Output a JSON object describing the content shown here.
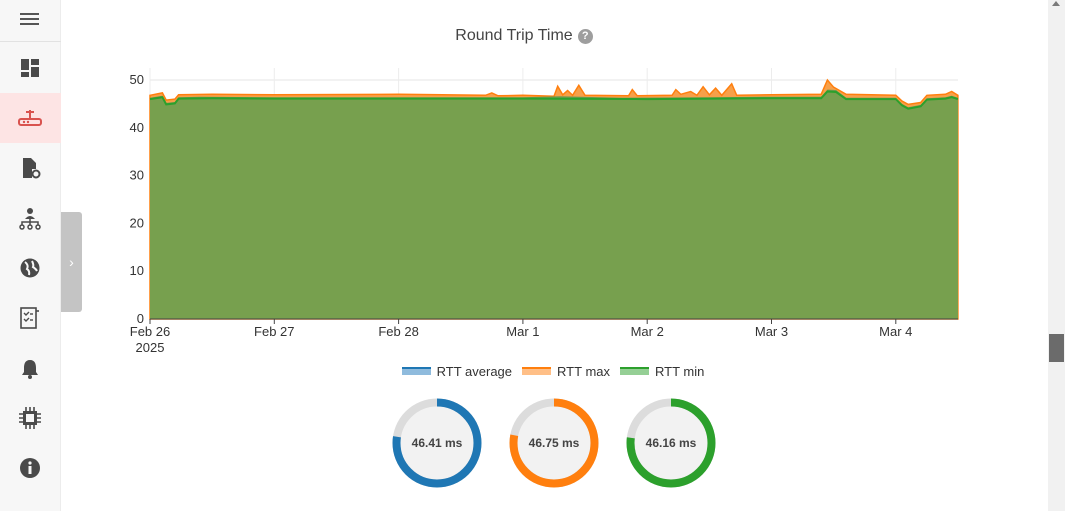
{
  "sidebar": {
    "items": [
      {
        "name": "dashboard",
        "icon": "dashboard-icon"
      },
      {
        "name": "router",
        "icon": "router-icon",
        "active": true
      },
      {
        "name": "file-settings",
        "icon": "file-settings-icon"
      },
      {
        "name": "network",
        "icon": "network-tree-icon"
      },
      {
        "name": "internet",
        "icon": "globe-icon"
      },
      {
        "name": "logs",
        "icon": "checklist-icon"
      },
      {
        "name": "alerts",
        "icon": "bell-icon"
      },
      {
        "name": "system",
        "icon": "chip-icon"
      },
      {
        "name": "info",
        "icon": "info-icon"
      }
    ],
    "active_color": "#d9534f"
  },
  "collapse_tab": {
    "glyph": "›"
  },
  "chart": {
    "title": "Round Trip Time",
    "help_glyph": "?"
  },
  "chart_data": {
    "type": "area",
    "title": "Round Trip Time",
    "xlabel": "",
    "ylabel": "",
    "ylim": [
      0,
      50
    ],
    "yticks": [
      0,
      10,
      20,
      30,
      40,
      50
    ],
    "xticks": [
      {
        "label": "Feb 26",
        "sub": "2025",
        "day": 0
      },
      {
        "label": "Feb 27",
        "sub": "",
        "day": 1
      },
      {
        "label": "Feb 28",
        "sub": "",
        "day": 2
      },
      {
        "label": "Mar 1",
        "sub": "",
        "day": 3
      },
      {
        "label": "Mar 2",
        "sub": "",
        "day": 4
      },
      {
        "label": "Mar 3",
        "sub": "",
        "day": 5
      },
      {
        "label": "Mar 4",
        "sub": "",
        "day": 6
      }
    ],
    "xrange_days": [
      0,
      6.5
    ],
    "grid": true,
    "legend_position": "bottom",
    "series": [
      {
        "name": "RTT average",
        "color": "#1f77b4",
        "points": [
          [
            0,
            46.3
          ],
          [
            0.1,
            46.7
          ],
          [
            0.13,
            45.2
          ],
          [
            0.2,
            45.4
          ],
          [
            0.23,
            46.4
          ],
          [
            0.4,
            46.5
          ],
          [
            1.0,
            46.4
          ],
          [
            2.0,
            46.4
          ],
          [
            3.0,
            46.4
          ],
          [
            3.3,
            46.6
          ],
          [
            3.8,
            46.3
          ],
          [
            4.5,
            46.4
          ],
          [
            5.0,
            46.5
          ],
          [
            5.4,
            46.5
          ],
          [
            5.45,
            48.0
          ],
          [
            5.52,
            47.9
          ],
          [
            5.6,
            46.3
          ],
          [
            6.0,
            46.3
          ],
          [
            6.05,
            45.0
          ],
          [
            6.1,
            44.3
          ],
          [
            6.2,
            44.8
          ],
          [
            6.25,
            46.2
          ],
          [
            6.4,
            46.4
          ],
          [
            6.45,
            46.7
          ],
          [
            6.5,
            46.3
          ]
        ]
      },
      {
        "name": "RTT max",
        "color": "#ff7f0e",
        "points": [
          [
            0,
            46.8
          ],
          [
            0.1,
            47.3
          ],
          [
            0.13,
            45.8
          ],
          [
            0.2,
            46.0
          ],
          [
            0.23,
            46.9
          ],
          [
            0.5,
            47.0
          ],
          [
            1.0,
            46.9
          ],
          [
            2.0,
            47.0
          ],
          [
            2.7,
            46.8
          ],
          [
            2.75,
            47.3
          ],
          [
            2.8,
            46.7
          ],
          [
            3.0,
            46.8
          ],
          [
            3.25,
            46.6
          ],
          [
            3.28,
            48.7
          ],
          [
            3.32,
            46.9
          ],
          [
            3.36,
            47.8
          ],
          [
            3.4,
            46.8
          ],
          [
            3.45,
            48.9
          ],
          [
            3.5,
            46.8
          ],
          [
            3.85,
            46.7
          ],
          [
            3.88,
            48.0
          ],
          [
            3.92,
            46.7
          ],
          [
            4.2,
            46.8
          ],
          [
            4.23,
            48.0
          ],
          [
            4.27,
            47.0
          ],
          [
            4.35,
            47.6
          ],
          [
            4.4,
            46.8
          ],
          [
            4.45,
            48.6
          ],
          [
            4.5,
            46.9
          ],
          [
            4.55,
            48.3
          ],
          [
            4.6,
            46.8
          ],
          [
            4.68,
            49.2
          ],
          [
            4.72,
            46.8
          ],
          [
            5.0,
            46.9
          ],
          [
            5.4,
            47.0
          ],
          [
            5.45,
            50.0
          ],
          [
            5.5,
            48.5
          ],
          [
            5.6,
            47.0
          ],
          [
            6.0,
            46.8
          ],
          [
            6.05,
            45.6
          ],
          [
            6.1,
            44.9
          ],
          [
            6.2,
            45.3
          ],
          [
            6.25,
            46.8
          ],
          [
            6.4,
            47.0
          ],
          [
            6.45,
            47.6
          ],
          [
            6.5,
            46.8
          ]
        ]
      },
      {
        "name": "RTT min",
        "color": "#2ca02c",
        "points": [
          [
            0,
            46.0
          ],
          [
            0.1,
            46.4
          ],
          [
            0.13,
            44.9
          ],
          [
            0.2,
            45.1
          ],
          [
            0.23,
            46.1
          ],
          [
            0.5,
            46.2
          ],
          [
            1.0,
            46.1
          ],
          [
            2.0,
            46.1
          ],
          [
            3.0,
            46.1
          ],
          [
            4.0,
            46.0
          ],
          [
            5.0,
            46.2
          ],
          [
            5.4,
            46.2
          ],
          [
            5.45,
            47.6
          ],
          [
            5.52,
            47.5
          ],
          [
            5.6,
            46.0
          ],
          [
            6.0,
            46.0
          ],
          [
            6.05,
            44.7
          ],
          [
            6.1,
            44.0
          ],
          [
            6.2,
            44.5
          ],
          [
            6.25,
            45.9
          ],
          [
            6.4,
            46.1
          ],
          [
            6.45,
            46.4
          ],
          [
            6.5,
            46.0
          ]
        ]
      }
    ]
  },
  "legend": [
    {
      "label": "RTT average",
      "color": "#1f77b4",
      "fill": "#8fbbdd"
    },
    {
      "label": "RTT max",
      "color": "#ff7f0e",
      "fill": "#ffbf87"
    },
    {
      "label": "RTT min",
      "color": "#2ca02c",
      "fill": "#95cf95"
    }
  ],
  "gauges": [
    {
      "label": "46.41 ms",
      "color": "#1f77b4",
      "value": 46.41
    },
    {
      "label": "46.75 ms",
      "color": "#ff7f0e",
      "value": 46.75
    },
    {
      "label": "46.16 ms",
      "color": "#2ca02c",
      "value": 46.16
    }
  ]
}
